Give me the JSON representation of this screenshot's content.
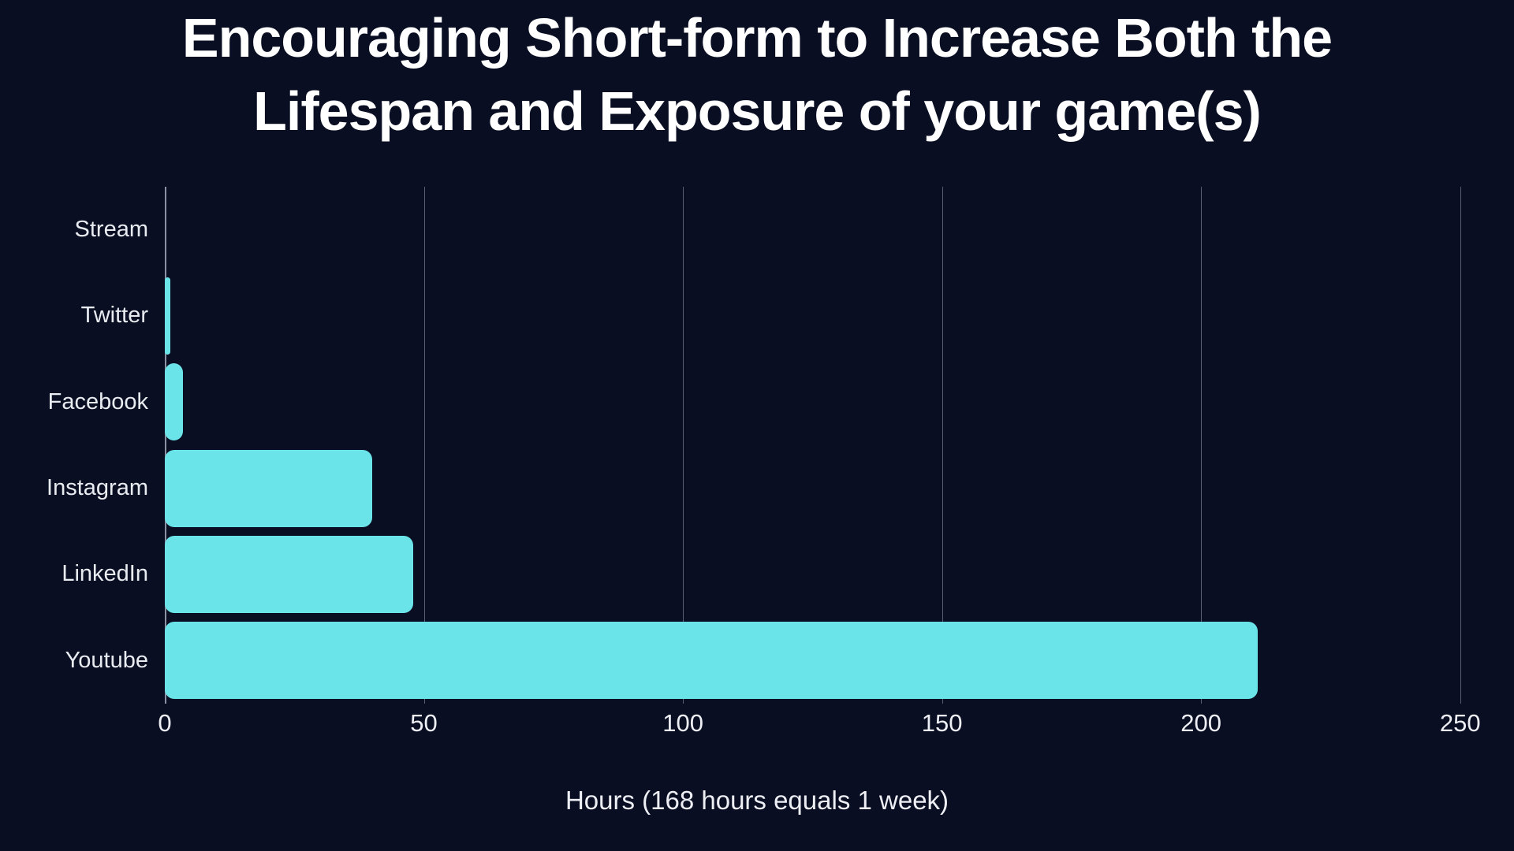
{
  "chart_data": {
    "type": "bar",
    "orientation": "horizontal",
    "title": "Encouraging Short-form to Increase Both the Lifespan and Exposure of your game(s)",
    "title_lines": [
      "Encouraging Short-form to Increase Both the",
      "Lifespan and Exposure of your game(s)"
    ],
    "categories": [
      "Stream",
      "Twitter",
      "Facebook",
      "Instagram",
      "LinkedIn",
      "Youtube"
    ],
    "values": [
      0,
      1,
      3.5,
      40,
      48,
      211
    ],
    "unit": "hours",
    "xlabel": "Hours (168 hours equals 1 week)",
    "xlim": [
      0,
      254
    ],
    "xticks": [
      0,
      50,
      100,
      150,
      200,
      250
    ],
    "grid": true,
    "legend_position": "none",
    "colors": {
      "background": "#090E22",
      "bar": "#6BE4E9",
      "title_text": "#FFFFFF",
      "label_text": "#E8EBF0",
      "tick_text": "#EDEFF4",
      "axis_line": "#8A92A3",
      "gridline": "rgba(186,196,216,0.45)"
    }
  }
}
